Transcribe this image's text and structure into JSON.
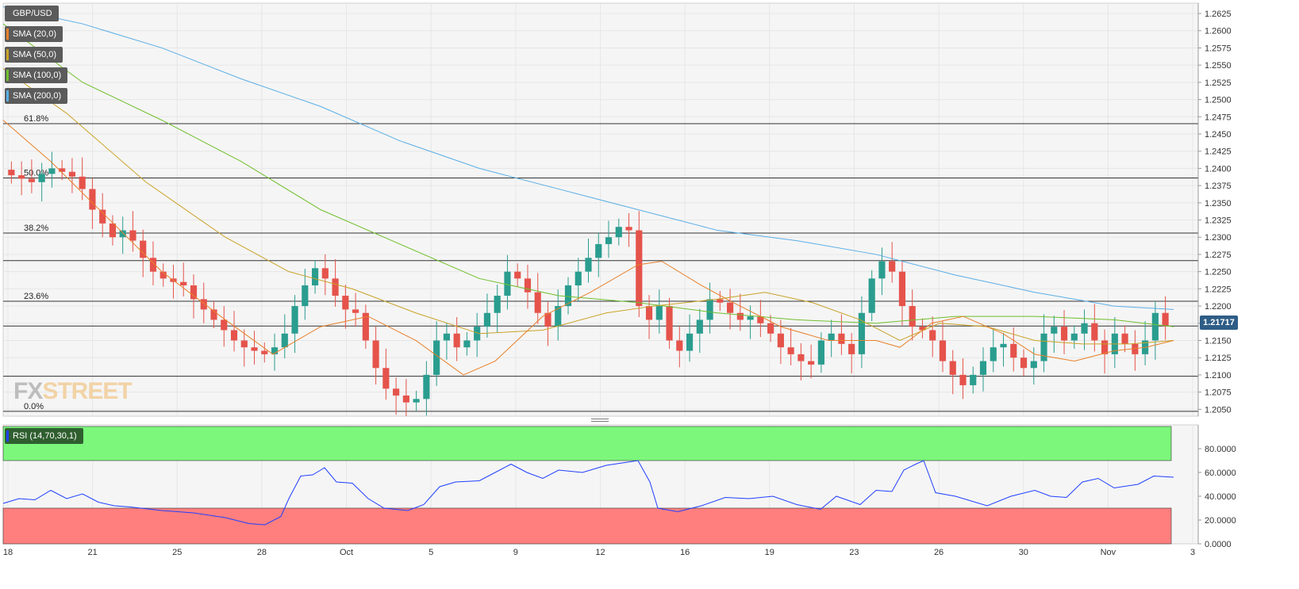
{
  "symbol": "GBP/USD",
  "logo": {
    "part1": "FX",
    "part2": "STREET"
  },
  "legend": [
    {
      "label": "SMA (20,0)",
      "color": "#e8802a"
    },
    {
      "label": "SMA (50,0)",
      "color": "#c9a227"
    },
    {
      "label": "SMA (100,0)",
      "color": "#6fbf2c"
    },
    {
      "label": "SMA (200,0)",
      "color": "#5aaee6"
    }
  ],
  "rsi_label": "RSI (14,70,30,1)",
  "current_price_label": "1.21717",
  "colors": {
    "up": "#2a9d8f",
    "down": "#e5534b",
    "rsi_line": "#1f3fff",
    "overbought_zone": "#7cf77c",
    "oversold_zone": "#ff7f7f",
    "price_tag": "#2e5d86"
  },
  "fib_levels": [
    {
      "label": "61.8%",
      "price": 1.2465
    },
    {
      "label": "50.0%",
      "price": 1.2386
    },
    {
      "label": "38.2%",
      "price": 1.2306
    },
    {
      "label": "",
      "price": 1.2266
    },
    {
      "label": "23.6%",
      "price": 1.2207
    },
    {
      "label": "",
      "price": 1.2171
    },
    {
      "label": "",
      "price": 1.2098
    },
    {
      "label": "0.0%",
      "price": 1.2047
    }
  ],
  "chart_data": {
    "type": "candlestick",
    "x_tick_labels": [
      "18",
      "21",
      "25",
      "28",
      "Oct",
      "5",
      "9",
      "12",
      "16",
      "19",
      "23",
      "26",
      "30",
      "Nov",
      "3"
    ],
    "y_tick_labels": [
      "1.2625",
      "1.2600",
      "1.2575",
      "1.2550",
      "1.2525",
      "1.2500",
      "1.2475",
      "1.2450",
      "1.2425",
      "1.2400",
      "1.2375",
      "1.2350",
      "1.2325",
      "1.2300",
      "1.2275",
      "1.2250",
      "1.2225",
      "1.2200",
      "1.2175",
      "1.2150",
      "1.2125",
      "1.2100",
      "1.2075",
      "1.2050"
    ],
    "ylim": [
      1.204,
      1.264
    ],
    "rsi_tick_labels": [
      "80.0000",
      "60.0000",
      "40.0000",
      "20.0000",
      "0.0000"
    ],
    "rsi_ylim": [
      0,
      100
    ],
    "rsi_overbought": 70,
    "rsi_oversold": 30,
    "close_points": [
      1.239,
      1.2385,
      1.238,
      1.2392,
      1.24,
      1.2395,
      1.2388,
      1.237,
      1.234,
      1.232,
      1.23,
      1.231,
      1.2295,
      1.227,
      1.225,
      1.224,
      1.2235,
      1.223,
      1.221,
      1.2195,
      1.218,
      1.2165,
      1.215,
      1.214,
      1.2135,
      1.213,
      1.214,
      1.216,
      1.22,
      1.223,
      1.2255,
      1.224,
      1.2215,
      1.2195,
      1.219,
      1.215,
      1.211,
      1.208,
      1.207,
      1.206,
      1.2065,
      1.21,
      1.215,
      1.216,
      1.214,
      1.215,
      1.217,
      1.219,
      1.2215,
      1.225,
      1.224,
      1.222,
      1.219,
      1.217,
      1.22,
      1.223,
      1.225,
      1.227,
      1.229,
      1.23,
      1.2315,
      1.231,
      1.22,
      1.218,
      1.22,
      1.215,
      1.2135,
      1.216,
      1.218,
      1.221,
      1.2205,
      1.219,
      1.218,
      1.2185,
      1.2175,
      1.216,
      1.214,
      1.213,
      1.212,
      1.2115,
      1.215,
      1.216,
      1.2145,
      1.213,
      1.219,
      1.224,
      1.2265,
      1.225,
      1.22,
      1.217,
      1.2165,
      1.215,
      1.212,
      1.21,
      1.2085,
      1.21,
      1.212,
      1.214,
      1.2145,
      1.2125,
      1.211,
      1.212,
      1.216,
      1.217,
      1.215,
      1.216,
      1.2175,
      1.215,
      1.213,
      1.216,
      1.2145,
      1.213,
      1.215,
      1.219,
      1.2171
    ],
    "sma_20": [
      [
        0,
        1.247
      ],
      [
        60,
        1.241
      ],
      [
        130,
        1.233
      ],
      [
        200,
        1.225
      ],
      [
        280,
        1.218
      ],
      [
        340,
        1.213
      ],
      [
        400,
        1.217
      ],
      [
        460,
        1.2185
      ],
      [
        520,
        1.215
      ],
      [
        580,
        1.21
      ],
      [
        620,
        1.212
      ],
      [
        680,
        1.2185
      ],
      [
        740,
        1.222
      ],
      [
        800,
        1.226
      ],
      [
        830,
        1.2265
      ],
      [
        880,
        1.223
      ],
      [
        920,
        1.2205
      ],
      [
        980,
        1.217
      ],
      [
        1040,
        1.215
      ],
      [
        1100,
        1.215
      ],
      [
        1130,
        1.214
      ],
      [
        1170,
        1.2175
      ],
      [
        1210,
        1.2185
      ],
      [
        1260,
        1.216
      ],
      [
        1300,
        1.213
      ],
      [
        1350,
        1.212
      ],
      [
        1400,
        1.2135
      ],
      [
        1440,
        1.214
      ],
      [
        1475,
        1.215
      ]
    ],
    "sma_50": [
      [
        0,
        1.2545
      ],
      [
        80,
        1.248
      ],
      [
        180,
        1.238
      ],
      [
        280,
        1.23
      ],
      [
        360,
        1.225
      ],
      [
        440,
        1.2225
      ],
      [
        520,
        1.219
      ],
      [
        600,
        1.216
      ],
      [
        680,
        1.2165
      ],
      [
        760,
        1.219
      ],
      [
        820,
        1.22
      ],
      [
        900,
        1.221
      ],
      [
        960,
        1.222
      ],
      [
        1020,
        1.2205
      ],
      [
        1080,
        1.218
      ],
      [
        1130,
        1.215
      ],
      [
        1180,
        1.2175
      ],
      [
        1240,
        1.217
      ],
      [
        1300,
        1.215
      ],
      [
        1360,
        1.2145
      ],
      [
        1420,
        1.2145
      ],
      [
        1475,
        1.215
      ]
    ],
    "sma_100": [
      [
        0,
        1.261
      ],
      [
        100,
        1.2525
      ],
      [
        200,
        1.247
      ],
      [
        300,
        1.241
      ],
      [
        400,
        1.234
      ],
      [
        500,
        1.229
      ],
      [
        600,
        1.224
      ],
      [
        700,
        1.2215
      ],
      [
        800,
        1.2205
      ],
      [
        900,
        1.219
      ],
      [
        1000,
        1.218
      ],
      [
        1100,
        1.2175
      ],
      [
        1200,
        1.2185
      ],
      [
        1300,
        1.2185
      ],
      [
        1400,
        1.218
      ],
      [
        1475,
        1.217
      ]
    ],
    "sma_200": [
      [
        0,
        1.2635
      ],
      [
        100,
        1.261
      ],
      [
        200,
        1.2575
      ],
      [
        300,
        1.253
      ],
      [
        400,
        1.249
      ],
      [
        500,
        1.244
      ],
      [
        600,
        1.24
      ],
      [
        700,
        1.237
      ],
      [
        800,
        1.234
      ],
      [
        900,
        1.231
      ],
      [
        1000,
        1.2295
      ],
      [
        1100,
        1.2275
      ],
      [
        1200,
        1.2245
      ],
      [
        1300,
        1.222
      ],
      [
        1400,
        1.22
      ],
      [
        1475,
        1.2195
      ]
    ],
    "rsi": [
      [
        0,
        34
      ],
      [
        20,
        38
      ],
      [
        40,
        37
      ],
      [
        60,
        45
      ],
      [
        80,
        38
      ],
      [
        100,
        42
      ],
      [
        120,
        35
      ],
      [
        140,
        32
      ],
      [
        160,
        31
      ],
      [
        200,
        28
      ],
      [
        240,
        26
      ],
      [
        280,
        22
      ],
      [
        310,
        17
      ],
      [
        330,
        16
      ],
      [
        350,
        23
      ],
      [
        360,
        38
      ],
      [
        375,
        57
      ],
      [
        390,
        58
      ],
      [
        405,
        64
      ],
      [
        420,
        52
      ],
      [
        440,
        51
      ],
      [
        460,
        38
      ],
      [
        480,
        30
      ],
      [
        510,
        28
      ],
      [
        530,
        33
      ],
      [
        550,
        48
      ],
      [
        570,
        52
      ],
      [
        600,
        53
      ],
      [
        620,
        60
      ],
      [
        640,
        67
      ],
      [
        660,
        60
      ],
      [
        680,
        55
      ],
      [
        700,
        62
      ],
      [
        730,
        60
      ],
      [
        760,
        66
      ],
      [
        790,
        69
      ],
      [
        800,
        70
      ],
      [
        815,
        52
      ],
      [
        825,
        30
      ],
      [
        850,
        27
      ],
      [
        880,
        32
      ],
      [
        910,
        39
      ],
      [
        940,
        38
      ],
      [
        970,
        40
      ],
      [
        1000,
        33
      ],
      [
        1030,
        29
      ],
      [
        1050,
        40
      ],
      [
        1080,
        33
      ],
      [
        1100,
        45
      ],
      [
        1120,
        44
      ],
      [
        1135,
        62
      ],
      [
        1150,
        67
      ],
      [
        1160,
        70
      ],
      [
        1175,
        43
      ],
      [
        1200,
        40
      ],
      [
        1240,
        32
      ],
      [
        1270,
        40
      ],
      [
        1300,
        45
      ],
      [
        1320,
        40
      ],
      [
        1340,
        39
      ],
      [
        1360,
        52
      ],
      [
        1380,
        55
      ],
      [
        1400,
        47
      ],
      [
        1430,
        50
      ],
      [
        1450,
        57
      ],
      [
        1475,
        56
      ]
    ]
  }
}
